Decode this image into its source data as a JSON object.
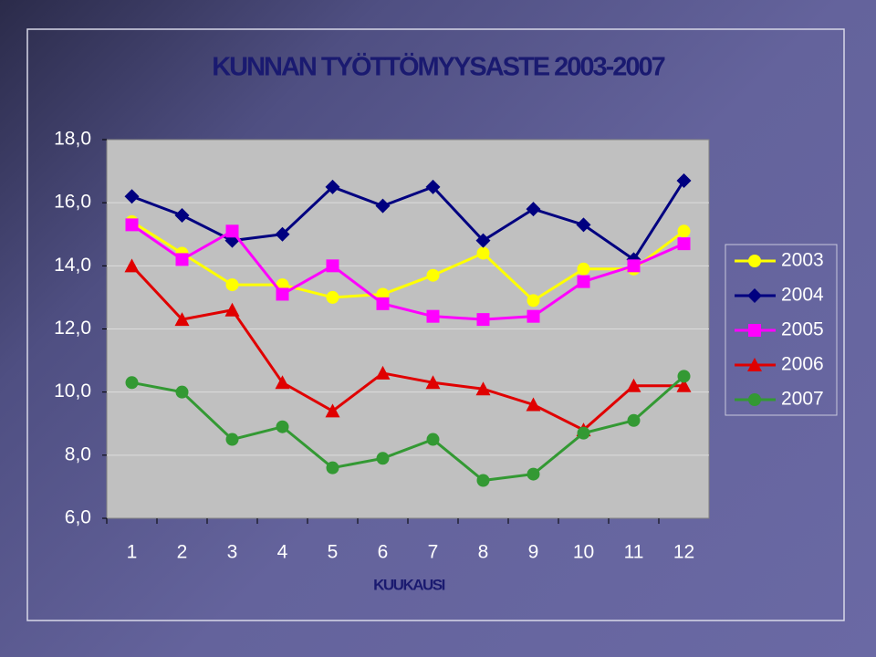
{
  "chart_data": {
    "type": "line",
    "title": "KUNNAN TYÖTTÖMYYSASTE 2003-2007",
    "x_label": "KUUKAUSI",
    "categories": [
      "1",
      "2",
      "3",
      "4",
      "5",
      "6",
      "7",
      "8",
      "9",
      "10",
      "11",
      "12"
    ],
    "ylim": [
      6,
      18
    ],
    "yticks": [
      {
        "value": 6,
        "label": "6,0"
      },
      {
        "value": 8,
        "label": "8,0"
      },
      {
        "value": 10,
        "label": "10,0"
      },
      {
        "value": 12,
        "label": "12,0"
      },
      {
        "value": 14,
        "label": "14,0"
      },
      {
        "value": 16,
        "label": "16,0"
      },
      {
        "value": 18,
        "label": "18,0"
      }
    ],
    "grid": true,
    "legend": "right",
    "series": [
      {
        "name": "2003",
        "color": "#ffff00",
        "marker": "circle",
        "values": [
          15.4,
          14.4,
          13.4,
          13.4,
          13.0,
          13.1,
          13.7,
          14.4,
          12.9,
          13.9,
          13.9,
          15.1
        ]
      },
      {
        "name": "2004",
        "color": "#000080",
        "marker": "diamond",
        "values": [
          16.2,
          15.6,
          14.8,
          15.0,
          16.5,
          15.9,
          16.5,
          14.8,
          15.8,
          15.3,
          14.2,
          16.7
        ]
      },
      {
        "name": "2005",
        "color": "#ff00ff",
        "marker": "square",
        "values": [
          15.3,
          14.2,
          15.1,
          13.1,
          14.0,
          12.8,
          12.4,
          12.3,
          12.4,
          13.5,
          14.0,
          14.7
        ]
      },
      {
        "name": "2006",
        "color": "#e00000",
        "marker": "triangle",
        "values": [
          14.0,
          12.3,
          12.6,
          10.3,
          9.4,
          10.6,
          10.3,
          10.1,
          9.6,
          8.8,
          10.2,
          10.2
        ]
      },
      {
        "name": "2007",
        "color": "#339933",
        "marker": "circle",
        "values": [
          10.3,
          10.0,
          8.5,
          8.9,
          7.6,
          7.9,
          8.5,
          7.2,
          7.4,
          8.7,
          9.1,
          10.5
        ]
      }
    ]
  }
}
